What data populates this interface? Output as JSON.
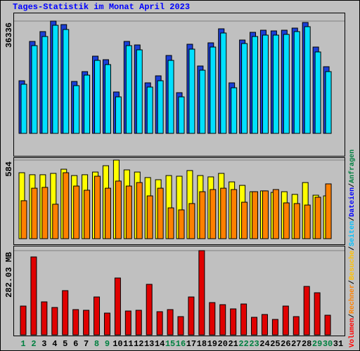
{
  "chart_data": {
    "type": "bar",
    "title": "Tages-Statistik im Monat April 2023",
    "categories": [
      "1",
      "2",
      "3",
      "4",
      "5",
      "6",
      "7",
      "8",
      "9",
      "10",
      "11",
      "12",
      "13",
      "14",
      "15",
      "16",
      "17",
      "18",
      "19",
      "20",
      "21",
      "22",
      "23",
      "24",
      "25",
      "26",
      "27",
      "28",
      "29",
      "30",
      "31"
    ],
    "category_colors": [
      "#008040",
      "#008040",
      "#000000",
      "#000000",
      "#000000",
      "#000000",
      "#000000",
      "#008040",
      "#008040",
      "#000000",
      "#000000",
      "#000000",
      "#000000",
      "#000000",
      "#008040",
      "#008040",
      "#000000",
      "#000000",
      "#000000",
      "#000000",
      "#000000",
      "#008040",
      "#008040",
      "#000000",
      "#000000",
      "#000000",
      "#000000",
      "#000000",
      "#008040",
      "#008040",
      "#000000"
    ],
    "legend": [
      {
        "name": "Volumen",
        "color": "#ff0000"
      },
      {
        "name": "Rechner",
        "color": "#ff8000"
      },
      {
        "name": "Besuche",
        "color": "#ffc000"
      },
      {
        "name": "Seiten",
        "color": "#00c0ff"
      },
      {
        "name": "Dateien",
        "color": "#0000ff"
      },
      {
        "name": "Anfragen",
        "color": "#008040"
      }
    ],
    "legend_separator": "/",
    "panels": [
      {
        "ylim": [
          0,
          36336
        ],
        "yticks": [
          36336
        ],
        "series": [
          {
            "color": "#1a3fd6",
            "values": [
              17033,
              29750,
              32929,
              36336,
              35200,
              16806,
              19985,
              24981,
              23845,
              13399,
              29750,
              28615,
              16351,
              18622,
              25208,
              13172,
              28841,
              21802,
              29296,
              33838,
              16351,
              30204,
              32702,
              33383,
              33156,
              33383,
              34065,
              35882,
              27933,
              21575,
              null
            ]
          },
          {
            "color": "#00e0ff",
            "values": [
              15897,
              28387,
              31340,
              34973,
              33610,
              15443,
              18849,
              23619,
              22256,
              11809,
              28387,
              27025,
              14989,
              17033,
              23619,
              11809,
              27252,
              20439,
              27933,
              32475,
              14762,
              29069,
              31340,
              31794,
              31794,
              32021,
              32929,
              34519,
              26344,
              19985,
              null
            ]
          }
        ]
      },
      {
        "ylim": [
          0,
          584
        ],
        "yticks": [
          584
        ],
        "series": [
          {
            "color": "#ffff00",
            "values": [
              490,
              475,
              475,
              485,
              516,
              469,
              475,
              495,
              542,
              584,
              511,
              495,
              454,
              438,
              469,
              464,
              506,
              469,
              459,
              485,
              422,
              396,
              349,
              355,
              344,
              349,
              329,
              417,
              323,
              318,
              null
            ]
          },
          {
            "color": "#ff8000",
            "values": [
              282,
              375,
              381,
              256,
              490,
              391,
              360,
              464,
              375,
              428,
              391,
              417,
              318,
              375,
              229,
              214,
              261,
              349,
              365,
              375,
              365,
              271,
              349,
              355,
              365,
              266,
              261,
              250,
              308,
              407,
              null
            ]
          }
        ]
      },
      {
        "ylim": [
          0,
          282.03
        ],
        "yticks": [
          {
            "value": 282.03,
            "label": "282.03 MB"
          }
        ],
        "series": [
          {
            "color": "#e00000",
            "values": [
              96.4,
              260.9,
              110.5,
              91.7,
              148.1,
              84.6,
              82.3,
              126.9,
              72.9,
              190.4,
              79.9,
              82.3,
              169.2,
              77.6,
              84.6,
              61.1,
              126.9,
              282.03,
              108.1,
              101.1,
              87.0,
              103.4,
              58.8,
              68.2,
              51.7,
              96.4,
              61.1,
              162.2,
              141.0,
              65.8,
              null
            ]
          }
        ]
      }
    ]
  }
}
